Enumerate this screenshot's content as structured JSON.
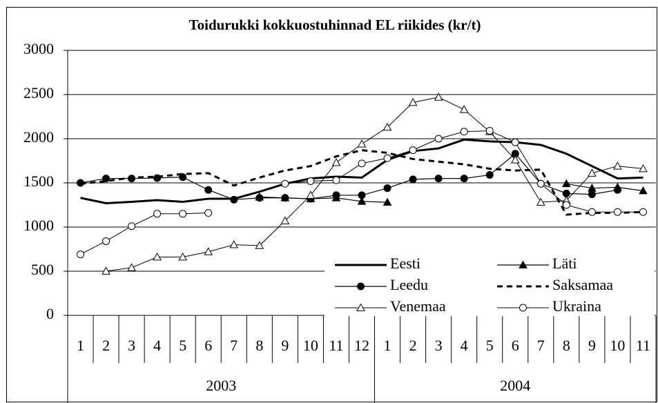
{
  "chart_data": {
    "type": "line",
    "title": "Toidurukki kokkuostuhinnad EL riikides (kr/t)",
    "categories": [
      "1",
      "2",
      "3",
      "4",
      "5",
      "6",
      "7",
      "8",
      "9",
      "10",
      "11",
      "12",
      "1",
      "2",
      "3",
      "4",
      "5",
      "6",
      "7",
      "8",
      "9",
      "10",
      "11"
    ],
    "groups": [
      "2003",
      "2004"
    ],
    "ylim": [
      0,
      3000
    ],
    "yticks": [
      0,
      500,
      1000,
      1500,
      2000,
      2500,
      3000
    ],
    "grid": true,
    "series": [
      {
        "name": "Eesti",
        "color": "#000000",
        "width": 3,
        "dash": "none",
        "marker": "none",
        "values": [
          1330,
          1270,
          1285,
          1305,
          1285,
          1320,
          1320,
          1400,
          1490,
          1550,
          1570,
          1560,
          1760,
          1860,
          1890,
          1990,
          1970,
          1960,
          1930,
          1830,
          1690,
          1550,
          1560
        ]
      },
      {
        "name": "Läti",
        "color": "#000000",
        "width": 1.2,
        "dash": "none",
        "marker": "triangle-filled",
        "values": [
          null,
          null,
          null,
          null,
          null,
          null,
          null,
          1340,
          1330,
          1320,
          1330,
          1290,
          1280,
          null,
          null,
          null,
          null,
          null,
          null,
          1490,
          1440,
          1450,
          1410
        ]
      },
      {
        "name": "Leedu",
        "color": "#000000",
        "width": 1.2,
        "dash": "none",
        "marker": "circle-filled",
        "values": [
          1500,
          1550,
          1550,
          1555,
          1565,
          1420,
          1310,
          1330,
          1330,
          1320,
          1360,
          1360,
          1440,
          1540,
          1550,
          1550,
          1590,
          1830,
          1490,
          1380,
          1370,
          1420,
          null
        ]
      },
      {
        "name": "Saksamaa",
        "color": "#000000",
        "width": 3,
        "dash": "8 6",
        "marker": "none",
        "values": [
          1490,
          1520,
          1560,
          1570,
          1600,
          1610,
          1470,
          1560,
          1640,
          1690,
          1800,
          1870,
          1840,
          1770,
          1740,
          1710,
          1660,
          1640,
          1650,
          1140,
          1160,
          1160,
          1170
        ]
      },
      {
        "name": "Venemaa",
        "color": "#000000",
        "width": 1,
        "dash": "none",
        "marker": "triangle-open",
        "values": [
          null,
          500,
          540,
          660,
          660,
          720,
          800,
          790,
          1070,
          1360,
          1730,
          1940,
          2130,
          2410,
          2470,
          2330,
          2080,
          1760,
          1280,
          1300,
          1610,
          1690,
          1660
        ]
      },
      {
        "name": "Ukraina",
        "color": "#000000",
        "width": 1,
        "dash": "none",
        "marker": "circle-open",
        "values": [
          690,
          840,
          1010,
          1150,
          1150,
          1160,
          null,
          null,
          1490,
          1520,
          1530,
          1720,
          1780,
          1870,
          2000,
          2080,
          2090,
          1960,
          1490,
          1250,
          1170,
          1170,
          1170
        ]
      }
    ]
  }
}
